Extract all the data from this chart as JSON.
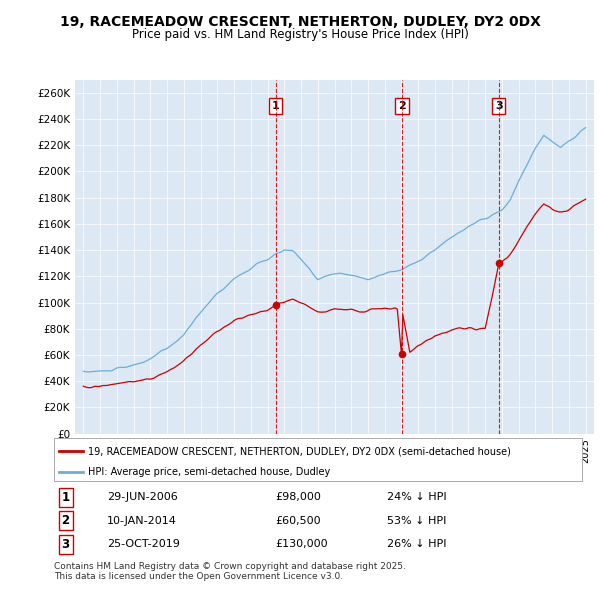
{
  "title": "19, RACEMEADOW CRESCENT, NETHERTON, DUDLEY, DY2 0DX",
  "subtitle": "Price paid vs. HM Land Registry's House Price Index (HPI)",
  "ylim": [
    0,
    270000
  ],
  "yticks": [
    0,
    20000,
    40000,
    60000,
    80000,
    100000,
    120000,
    140000,
    160000,
    180000,
    200000,
    220000,
    240000,
    260000
  ],
  "ytick_labels": [
    "£0",
    "£20K",
    "£40K",
    "£60K",
    "£80K",
    "£100K",
    "£120K",
    "£140K",
    "£160K",
    "£180K",
    "£200K",
    "£220K",
    "£240K",
    "£260K"
  ],
  "background_color": "#dce9f5",
  "sale_dates": [
    2006.49,
    2014.03,
    2019.82
  ],
  "sale_prices": [
    98000,
    60500,
    130000
  ],
  "sale_labels": [
    "1",
    "2",
    "3"
  ],
  "sale_date_strs": [
    "29-JUN-2006",
    "10-JAN-2014",
    "25-OCT-2019"
  ],
  "sale_price_strs": [
    "£98,000",
    "£60,500",
    "£130,000"
  ],
  "sale_hpi_strs": [
    "24% ↓ HPI",
    "53% ↓ HPI",
    "26% ↓ HPI"
  ],
  "legend_property": "19, RACEMEADOW CRESCENT, NETHERTON, DUDLEY, DY2 0DX (semi-detached house)",
  "legend_hpi": "HPI: Average price, semi-detached house, Dudley",
  "footer": "Contains HM Land Registry data © Crown copyright and database right 2025.\nThis data is licensed under the Open Government Licence v3.0.",
  "hpi_color": "#6baed6",
  "sale_color": "#cc0000",
  "vline_color": "#dd0000",
  "title_fontsize": 10,
  "subtitle_fontsize": 9
}
